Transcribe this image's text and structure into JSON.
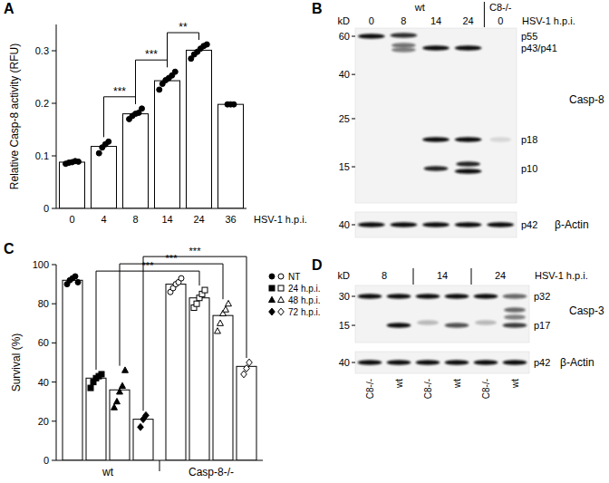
{
  "chart_data": [
    {
      "title": "A",
      "type": "bar",
      "categories": [
        "0",
        "4",
        "8",
        "14",
        "24",
        "36"
      ],
      "x_label": "HSV-1 h.p.i.",
      "y_label": "Relative Casp-8 activity (RFU)",
      "values": [
        0.088,
        0.118,
        0.18,
        0.243,
        0.301,
        0.198
      ],
      "points": [
        [
          0.085,
          0.087,
          0.088,
          0.09,
          0.089
        ],
        [
          0.105,
          0.116,
          0.122,
          0.127
        ],
        [
          0.17,
          0.176,
          0.18,
          0.182,
          0.19
        ],
        [
          0.226,
          0.237,
          0.244,
          0.248,
          0.253,
          0.26
        ],
        [
          0.285,
          0.293,
          0.298,
          0.304,
          0.309,
          0.312
        ],
        [
          0.198,
          0.198,
          0.198
        ]
      ],
      "color": "#ffffff",
      "marker": "circle",
      "ylim": [
        0,
        0.35
      ],
      "yticks": [
        0,
        0.1,
        0.2,
        0.3
      ],
      "annotations": [
        {
          "text": "***",
          "between": [
            "4",
            "8"
          ]
        },
        {
          "text": "***",
          "between": [
            "8",
            "14"
          ]
        },
        {
          "text": "**",
          "between": [
            "14",
            "24"
          ]
        }
      ]
    },
    {
      "title": "C",
      "type": "bar",
      "categories": [
        "wt",
        "Casp-8-/-"
      ],
      "y_label": "Survival (%)",
      "color": "#ffffff",
      "legend": "right",
      "ylim": [
        0,
        100
      ],
      "yticks": [
        0,
        20,
        40,
        60,
        80,
        100
      ],
      "series": [
        {
          "name": "NT",
          "marker": "circle",
          "values": [
            92,
            90
          ],
          "points": [
            [
              90,
              92,
              93,
              94,
              91
            ],
            [
              86,
              88,
              90,
              91,
              93
            ]
          ]
        },
        {
          "name": "24 h.p.i.",
          "marker": "square",
          "values": [
            42,
            83
          ],
          "points": [
            [
              37,
              40,
              42,
              43,
              44
            ],
            [
              78,
              80,
              83,
              85,
              87
            ]
          ]
        },
        {
          "name": "48 h.p.i.",
          "marker": "triangle",
          "values": [
            36,
            74
          ],
          "points": [
            [
              27,
              30,
              35,
              38,
              46
            ],
            [
              66,
              70,
              75,
              77,
              80
            ]
          ]
        },
        {
          "name": "72 h.p.i.",
          "marker": "diamond",
          "values": [
            21,
            48
          ],
          "points": [
            [
              17,
              21,
              23
            ],
            [
              44,
              47,
              50
            ]
          ]
        }
      ],
      "annotations": [
        {
          "text": "***",
          "series": "24 h.p.i."
        },
        {
          "text": "***",
          "series": "48 h.p.i."
        },
        {
          "text": "***",
          "series": "72 h.p.i."
        }
      ]
    }
  ],
  "blots": [
    {
      "title": "B",
      "unit": "kD",
      "condition": "HSV-1 h.p.i.",
      "groups": [
        {
          "label": "wt",
          "lanes": [
            "0",
            "8",
            "14",
            "24"
          ]
        },
        {
          "label": "C8-/-",
          "lanes": [
            "0"
          ]
        }
      ],
      "panels": [
        {
          "protein": "Casp-8",
          "markers": [
            60,
            40,
            25,
            15
          ],
          "bands": [
            "p55",
            "p43/p41",
            "p18",
            "p10"
          ]
        },
        {
          "protein": "β-Actin",
          "markers": [
            40
          ],
          "bands": [
            "p42"
          ]
        }
      ]
    },
    {
      "title": "D",
      "unit": "kD",
      "condition": "HSV-1 h.p.i.",
      "time_points": [
        "8",
        "14",
        "24"
      ],
      "lanes": [
        "C8-/-",
        "wt",
        "C8-/-",
        "wt",
        "C8-/-",
        "wt"
      ],
      "panels": [
        {
          "protein": "Casp-3",
          "markers": [
            30,
            15
          ],
          "bands": [
            "p32",
            "p17"
          ]
        },
        {
          "protein": "β-Actin",
          "markers": [
            40
          ],
          "bands": [
            "p42"
          ]
        }
      ]
    }
  ]
}
